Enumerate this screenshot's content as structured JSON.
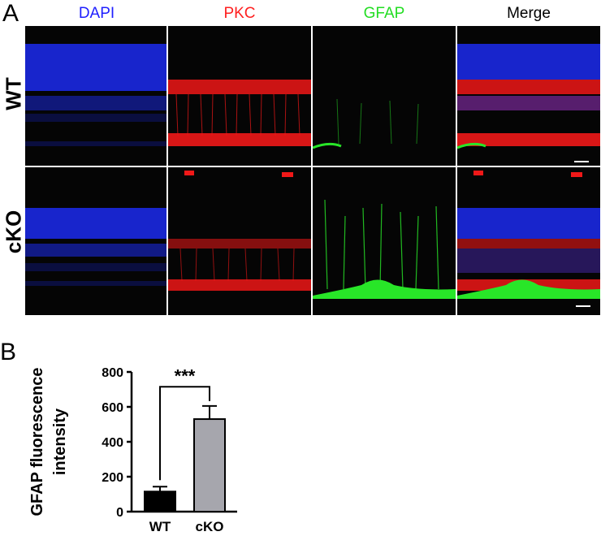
{
  "panel_a": {
    "letter": "A",
    "channels": [
      {
        "label": "DAPI",
        "color": "#1f1fff"
      },
      {
        "label": "PKC",
        "color": "#ff1f1f"
      },
      {
        "label": "GFAP",
        "color": "#22dd22"
      },
      {
        "label": "Merge",
        "color": "#000000"
      }
    ],
    "rows": [
      {
        "label": "WT"
      },
      {
        "label": "cKO"
      }
    ],
    "image_colors": {
      "nuclei": "#1c2cf0",
      "pkc": "#f01818",
      "gfap": "#28e628",
      "background": "#050505",
      "scale_bar": "#ffffff"
    }
  },
  "panel_b": {
    "letter": "B",
    "significance": "***"
  },
  "chart_data": {
    "type": "bar",
    "categories": [
      "WT",
      "cKO"
    ],
    "values": [
      115,
      530
    ],
    "errors": [
      28,
      75
    ],
    "bar_colors": [
      "#000000",
      "#a6a6ad"
    ],
    "title": "",
    "xlabel": "",
    "ylabel": "GFAP fluorescence intensity",
    "ylabel_lines": [
      "GFAP fluorescence",
      "intensity"
    ],
    "ylim": [
      0,
      800
    ],
    "yticks": [
      0,
      200,
      400,
      600,
      800
    ],
    "grid": false
  }
}
